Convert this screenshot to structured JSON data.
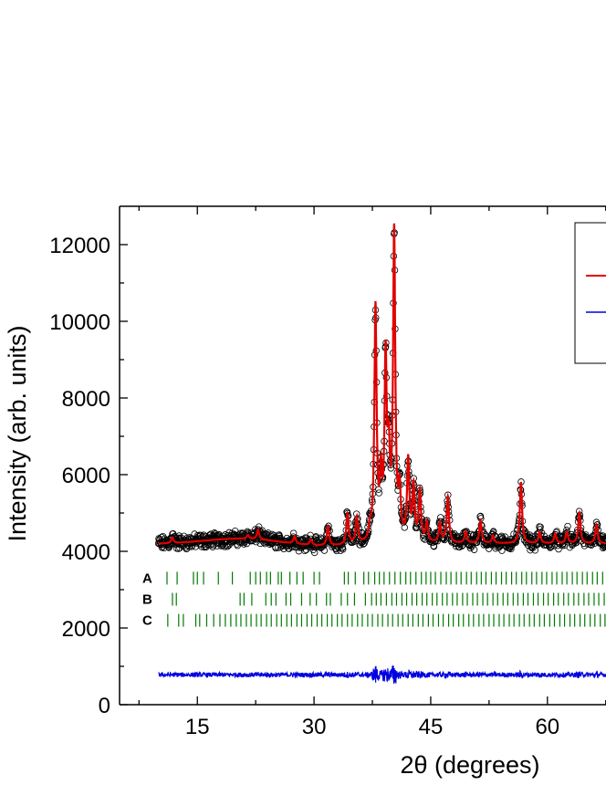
{
  "chart_data": {
    "type": "scatter",
    "xlabel": "2θ (degrees)",
    "ylabel": "Intensity (arb. units)",
    "xlim": [
      5,
      68
    ],
    "ylim": [
      0,
      13000
    ],
    "xticks": [
      15,
      30,
      45,
      60
    ],
    "yticks": [
      0,
      2000,
      4000,
      6000,
      8000,
      10000,
      12000
    ],
    "grid": false,
    "legend_placement": "top-right",
    "colors": {
      "observed": "#000000",
      "calculated": "#e00000",
      "difference": "#0000e0",
      "phase_ticks": "#007a00"
    },
    "x_range": [
      10,
      68
    ],
    "background": 4200,
    "difference_baseline": 780,
    "peaks": [
      {
        "x": 11.8,
        "height": 150
      },
      {
        "x": 21.5,
        "height": 100
      },
      {
        "x": 22.8,
        "height": 250
      },
      {
        "x": 27.5,
        "height": 200
      },
      {
        "x": 29.6,
        "height": 150
      },
      {
        "x": 31.8,
        "height": 500
      },
      {
        "x": 34.3,
        "height": 800
      },
      {
        "x": 35.5,
        "height": 700
      },
      {
        "x": 37.2,
        "height": 300
      },
      {
        "x": 37.9,
        "height": 6100
      },
      {
        "x": 38.6,
        "height": 1500
      },
      {
        "x": 39.2,
        "height": 4600
      },
      {
        "x": 39.6,
        "height": 2000
      },
      {
        "x": 40.3,
        "height": 8000
      },
      {
        "x": 41.0,
        "height": 1200
      },
      {
        "x": 42.1,
        "height": 2100
      },
      {
        "x": 42.8,
        "height": 1400
      },
      {
        "x": 43.6,
        "height": 1300
      },
      {
        "x": 44.5,
        "height": 500
      },
      {
        "x": 46.2,
        "height": 500
      },
      {
        "x": 47.2,
        "height": 1200
      },
      {
        "x": 49.5,
        "height": 300
      },
      {
        "x": 51.4,
        "height": 600
      },
      {
        "x": 53.0,
        "height": 200
      },
      {
        "x": 56.6,
        "height": 1600
      },
      {
        "x": 59.0,
        "height": 300
      },
      {
        "x": 61.0,
        "height": 250
      },
      {
        "x": 62.5,
        "height": 300
      },
      {
        "x": 64.1,
        "height": 800
      },
      {
        "x": 66.3,
        "height": 500
      }
    ],
    "phase_rows": [
      {
        "label": "A",
        "y": 3300,
        "ticks": [
          11.1,
          12.4,
          14.5,
          15.0,
          15.8,
          17.7,
          19.5,
          21.8,
          22.5,
          23.1,
          23.9,
          24.4,
          25.4,
          25.8,
          26.9,
          27.8,
          28.6,
          30.0,
          30.7,
          33.9,
          34.4,
          35.3,
          36.4,
          37.0,
          37.8,
          38.4,
          39.0,
          39.7,
          40.4,
          41.1,
          41.8,
          42.4,
          43.1,
          43.8,
          44.4,
          45.0,
          45.6,
          46.3,
          47.0,
          47.6,
          48.3,
          48.9,
          49.6,
          50.2,
          50.9,
          51.5,
          52.1,
          52.8,
          53.4,
          54.1,
          54.7,
          55.4,
          56.0,
          56.7,
          57.3,
          58.0,
          58.6,
          59.3,
          59.9,
          60.6,
          61.2,
          61.9,
          62.5,
          63.2,
          63.8,
          64.5,
          65.1,
          65.8,
          66.4,
          67.1,
          67.7
        ]
      },
      {
        "label": "B",
        "y": 2750,
        "ticks": [
          11.8,
          12.3,
          20.5,
          21.0,
          22.0,
          23.8,
          24.5,
          25.1,
          26.4,
          27.0,
          28.4,
          29.5,
          30.3,
          31.6,
          32.1,
          33.5,
          34.3,
          35.2,
          36.6,
          37.4,
          38.0,
          38.6,
          39.3,
          40.0,
          40.6,
          41.3,
          41.9,
          42.6,
          43.2,
          43.9,
          44.5,
          45.2,
          45.8,
          46.5,
          47.1,
          47.8,
          48.4,
          49.1,
          49.7,
          50.4,
          51.0,
          51.7,
          52.3,
          53.0,
          53.6,
          54.3,
          54.9,
          55.6,
          56.2,
          56.9,
          57.5,
          58.2,
          58.8,
          59.5,
          60.1,
          60.8,
          61.4,
          62.1,
          62.7,
          63.4,
          64.0,
          64.7,
          65.3,
          66.0,
          66.6,
          67.3
        ]
      },
      {
        "label": "C",
        "y": 2200,
        "ticks": [
          11.2,
          12.6,
          13.2,
          14.8,
          15.3,
          16.2,
          17.1,
          17.9,
          18.6,
          19.3,
          20.0,
          20.6,
          21.3,
          21.9,
          22.6,
          23.2,
          23.9,
          24.5,
          25.2,
          25.8,
          26.5,
          27.1,
          27.8,
          28.4,
          29.1,
          29.7,
          30.4,
          31.0,
          31.7,
          32.3,
          33.0,
          33.6,
          34.3,
          34.9,
          35.6,
          36.2,
          36.9,
          37.5,
          38.2,
          38.8,
          39.5,
          40.1,
          40.8,
          41.4,
          42.1,
          42.7,
          43.4,
          44.0,
          44.7,
          45.3,
          46.0,
          46.6,
          47.3,
          47.9,
          48.6,
          49.2,
          49.9,
          50.5,
          51.2,
          51.8,
          52.5,
          53.1,
          53.8,
          54.4,
          55.1,
          55.7,
          56.4,
          57.0,
          57.7,
          58.3,
          59.0,
          59.6,
          60.3,
          60.9,
          61.6,
          62.2,
          62.9,
          63.5,
          64.2,
          64.8,
          65.5,
          66.1,
          66.8,
          67.4
        ]
      }
    ]
  }
}
